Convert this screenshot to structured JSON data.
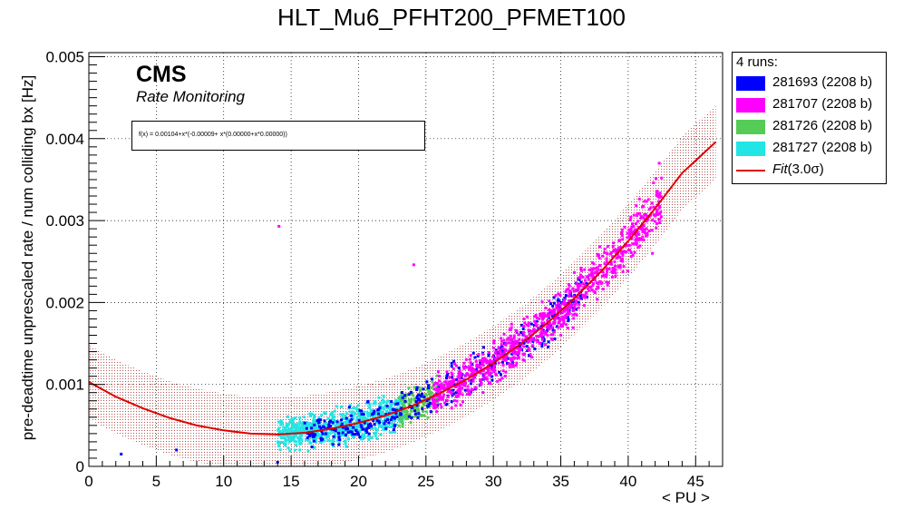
{
  "chart_data": {
    "type": "scatter",
    "title": "HLT_Mu6_PFHT200_PFMET100",
    "xlabel": "< PU >",
    "ylabel": "pre-deadtime unprescaled rate / num colliding bx [Hz]",
    "xlim": [
      0,
      47
    ],
    "ylim": [
      0,
      0.00505
    ],
    "x_ticks": [
      "0",
      "5",
      "10",
      "15",
      "20",
      "25",
      "30",
      "35",
      "40",
      "45"
    ],
    "y_ticks": [
      "0",
      "0.001",
      "0.002",
      "0.003",
      "0.004",
      "0.005"
    ],
    "grid": true,
    "legend_position": "right",
    "legend_header": "4 runs:",
    "annotations": {
      "experiment": "CMS",
      "subtitle": "Rate Monitoring",
      "fit_formula": "f(x) = 0.00104+x*(-0.00009+ x*(0.00000+x*0.00000))"
    },
    "fit": {
      "label": "Fit(3.0σ)",
      "label_main": "Fit",
      "label_sigma": "(3.0σ)",
      "color": "#dd0000",
      "band_color": "#b04040",
      "curve_points": [
        [
          0,
          0.00103
        ],
        [
          2,
          0.00085
        ],
        [
          4,
          0.00071
        ],
        [
          6,
          0.00059
        ],
        [
          8,
          0.0005
        ],
        [
          10,
          0.00044
        ],
        [
          12,
          0.0004
        ],
        [
          14,
          0.00039
        ],
        [
          16,
          0.00041
        ],
        [
          18,
          0.00046
        ],
        [
          20,
          0.00053
        ],
        [
          22,
          0.00062
        ],
        [
          24,
          0.00074
        ],
        [
          26,
          0.00089
        ],
        [
          28,
          0.00106
        ],
        [
          30,
          0.00126
        ],
        [
          32,
          0.00149
        ],
        [
          34,
          0.00175
        ],
        [
          36,
          0.00205
        ],
        [
          38,
          0.00238
        ],
        [
          40,
          0.00275
        ],
        [
          42,
          0.00315
        ],
        [
          44,
          0.00358
        ],
        [
          46.5,
          0.00396
        ]
      ],
      "band_halfwidth": 0.00045
    },
    "series": [
      {
        "name": "281693 (2208 b)",
        "color": "#0000ff",
        "x_range": [
          16,
          37
        ],
        "count": 420
      },
      {
        "name": "281707 (2208 b)",
        "color": "#ff00ff",
        "x_range": [
          25.5,
          42.5
        ],
        "count": 900
      },
      {
        "name": "281726 (2208 b)",
        "color": "#55cc55",
        "x_range": [
          23,
          26
        ],
        "count": 160
      },
      {
        "name": "281727 (2208 b)",
        "color": "#22e5e5",
        "x_range": [
          14,
          23.5
        ],
        "count": 700
      }
    ],
    "outliers": [
      {
        "x": 2.4,
        "y": 0.00015,
        "color": "#0000ff"
      },
      {
        "x": 6.5,
        "y": 0.0002,
        "color": "#0000ff"
      },
      {
        "x": 14.1,
        "y": 0.00293,
        "color": "#ff00ff"
      },
      {
        "x": 24.1,
        "y": 0.00246,
        "color": "#ff00ff"
      },
      {
        "x": 14.0,
        "y": 5e-05,
        "color": "#0000ff"
      },
      {
        "x": 41.8,
        "y": 0.0026,
        "color": "#ff00ff"
      },
      {
        "x": 42.3,
        "y": 0.0037,
        "color": "#ff00ff"
      }
    ]
  }
}
